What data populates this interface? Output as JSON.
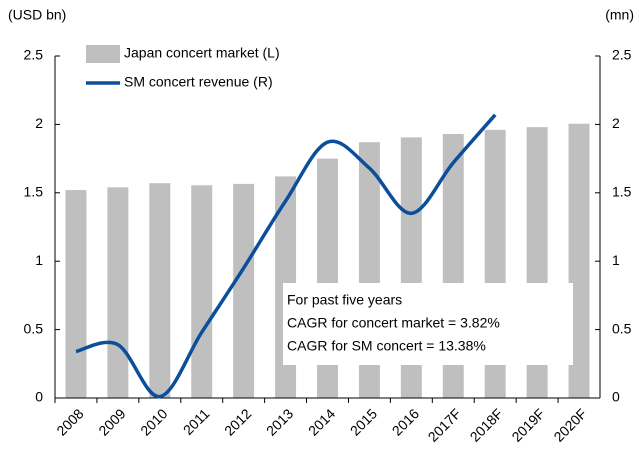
{
  "chart_data": {
    "type": "bar_line",
    "y_label": "(USD bn)",
    "y2_label": "(mn)",
    "categories": [
      "2008",
      "2009",
      "2010",
      "2011",
      "2012",
      "2013",
      "2014",
      "2015",
      "2016",
      "2017F",
      "2018F",
      "2019F",
      "2020F"
    ],
    "series": [
      {
        "name": "Japan concert market (L)",
        "type": "bar",
        "color": "#bfbfbf",
        "values": [
          1.52,
          1.54,
          1.57,
          1.555,
          1.565,
          1.62,
          1.75,
          1.87,
          1.905,
          1.93,
          1.96,
          1.98,
          2.005
        ]
      },
      {
        "name": "SM concert revenue (R)",
        "type": "line",
        "axis": "y2",
        "color": "#0b4f9c",
        "values": [
          0.34,
          0.39,
          0.01,
          0.48,
          0.95,
          1.44,
          1.87,
          1.68,
          1.35,
          1.72,
          2.07,
          null,
          null
        ]
      }
    ],
    "ylim": [
      0,
      2.5
    ],
    "yticks": [
      0,
      0.5,
      1,
      1.5,
      2,
      2.5
    ],
    "y2lim": [
      0,
      2.5
    ],
    "y2ticks": [
      0,
      0.5,
      1,
      1.5,
      2,
      2.5
    ],
    "annotation": [
      "For past five years",
      "CAGR for concert market = 3.82%",
      "CAGR for SM concert = 13.38%"
    ]
  }
}
